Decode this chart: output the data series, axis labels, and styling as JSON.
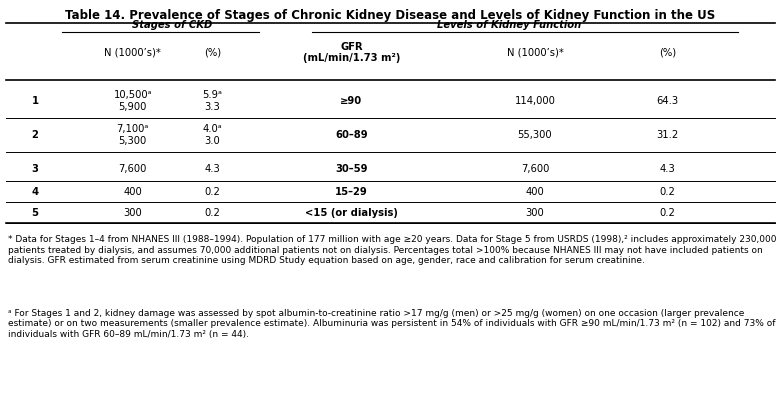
{
  "title": "Table 14. Prevalence of Stages of Chronic Kidney Disease and Levels of Kidney Function in the US",
  "col_headers": {
    "ckd_group": "Stages of CKD",
    "kf_group": "Levels of Kidney Function",
    "n_ckd": "N (1000’s)*",
    "pct_ckd": "(%)",
    "gfr": "GFR\n(mL/min/1.73 m²)",
    "n_kf": "N (1000’s)*",
    "pct_kf": "(%)"
  },
  "rows": [
    {
      "stage": "1",
      "n_ckd": "10,500ᵃ\n5,900",
      "pct_ckd": "5.9ᵃ\n3.3",
      "gfr": "≥90",
      "n_kf": "114,000",
      "pct_kf": "64.3"
    },
    {
      "stage": "2",
      "n_ckd": "7,100ᵃ\n5,300",
      "pct_ckd": "4.0ᵃ\n3.0",
      "gfr": "60–89",
      "n_kf": "55,300",
      "pct_kf": "31.2"
    },
    {
      "stage": "3",
      "n_ckd": "7,600",
      "pct_ckd": "4.3",
      "gfr": "30–59",
      "n_kf": "7,600",
      "pct_kf": "4.3"
    },
    {
      "stage": "4",
      "n_ckd": "400",
      "pct_ckd": "0.2",
      "gfr": "15–29",
      "n_kf": "400",
      "pct_kf": "0.2"
    },
    {
      "stage": "5",
      "n_ckd": "300",
      "pct_ckd": "0.2",
      "gfr": "<15 (or dialysis)",
      "n_kf": "300",
      "pct_kf": "0.2"
    }
  ],
  "footnote_star": "* Data for Stages 1–4 from NHANES III (1988–1994). Population of 177 million with age ≥20 years. Data for Stage 5 from USRDS (1998),² includes approximately 230,000 patients treated by dialysis, and assumes 70,000 additional patients not on dialysis. Percentages total >100% because NHANES III may not have included patients on dialysis. GFR estimated from serum creatinine using MDRD Study equation based on age, gender, race and calibration for serum creatinine.",
  "footnote_a": "ᵃ For Stages 1 and 2, kidney damage was assessed by spot albumin-to-creatinine ratio >17 mg/g (men) or >25 mg/g (women) on one occasion (larger prevalence estimate) or on two measurements (smaller prevalence estimate). Albuminuria was persistent in 54% of individuals with GFR ≥90 mL/min/1.73 m² (n = 102) and 73% of individuals with GFR 60–89 mL/min/1.73 m² (n = 44)."
}
